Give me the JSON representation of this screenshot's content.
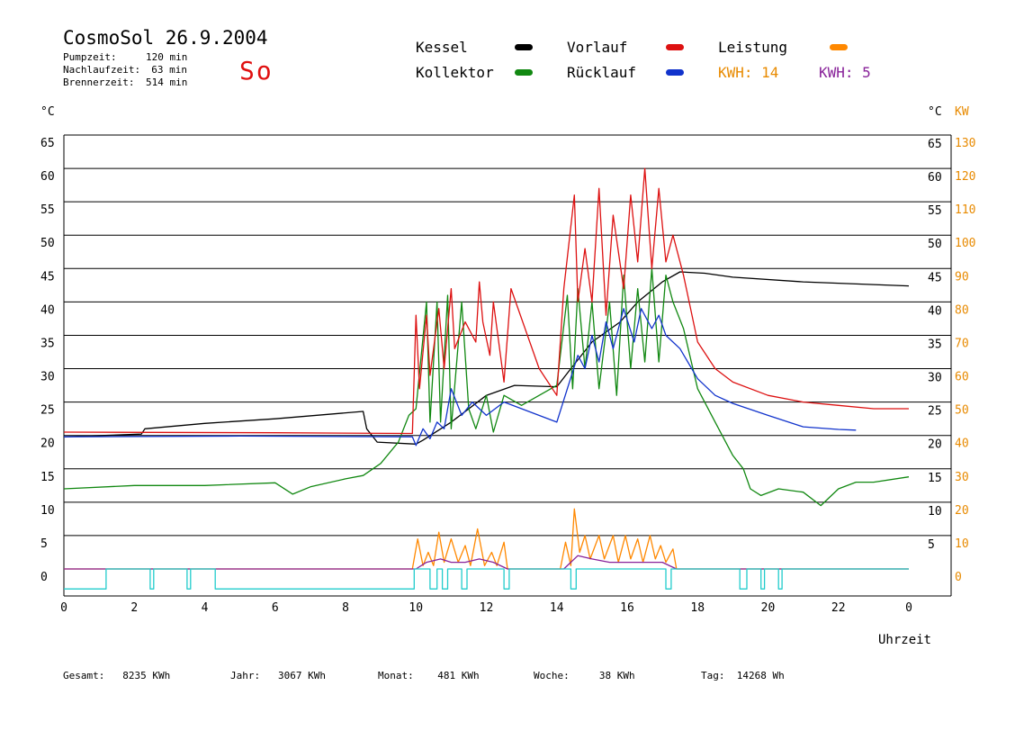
{
  "header": {
    "title": "CosmoSol 26.9.2004",
    "day": "So",
    "stats": [
      {
        "label": "Pumpzeit:",
        "value": "120 min"
      },
      {
        "label": "Nachlaufzeit:",
        "value": "63 min"
      },
      {
        "label": "Brennerzeit:",
        "value": "514 min"
      }
    ]
  },
  "legend": {
    "kessel": {
      "label": "Kessel",
      "color": "#000000"
    },
    "kollektor": {
      "label": "Kollektor",
      "color": "#118811"
    },
    "vorlauf": {
      "label": "Vorlauf",
      "color": "#dd1111"
    },
    "ruecklauf": {
      "label": "Rücklauf",
      "color": "#1133cc"
    },
    "leistung": {
      "label": "Leistung",
      "color": "#ff8800"
    },
    "kwh1": {
      "label": "KWH:",
      "value": "14",
      "color": "#e88a00"
    },
    "kwh2": {
      "label": "KWH:",
      "value": "5",
      "color": "#882299"
    }
  },
  "chart_data": {
    "type": "line",
    "x_label": "Uhrzeit",
    "x_ticks": [
      "0",
      "2",
      "4",
      "6",
      "8",
      "10",
      "12",
      "14",
      "16",
      "18",
      "20",
      "22",
      "0"
    ],
    "xlim": [
      0,
      24
    ],
    "y_left_unit": "°C",
    "y_right_unit": "°C",
    "y_power_unit": "KW",
    "y_left_ticks": [
      "65",
      "60",
      "55",
      "50",
      "45",
      "40",
      "35",
      "30",
      "25",
      "20",
      "15",
      "10",
      "5",
      "0"
    ],
    "y_right_ticks": [
      "65",
      "60",
      "55",
      "50",
      "45",
      "40",
      "35",
      "30",
      "25",
      "20",
      "15",
      "10",
      "5"
    ],
    "y_power_ticks": [
      "130",
      "120",
      "110",
      "100",
      "90",
      "80",
      "70",
      "60",
      "50",
      "40",
      "30",
      "20",
      "10",
      "0"
    ],
    "ylim": [
      0,
      65
    ],
    "power_ylim": [
      0,
      130
    ],
    "grid": true,
    "series": [
      {
        "name": "Kessel",
        "color": "#000000",
        "points": [
          [
            0,
            19.8
          ],
          [
            2.2,
            20.2
          ],
          [
            2.3,
            21
          ],
          [
            4,
            21.8
          ],
          [
            6,
            22.5
          ],
          [
            8.5,
            23.6
          ],
          [
            8.6,
            21
          ],
          [
            8.9,
            19
          ],
          [
            10,
            18.7
          ],
          [
            10.2,
            19.3
          ],
          [
            11,
            22
          ],
          [
            12,
            26
          ],
          [
            12.8,
            27.5
          ],
          [
            14,
            27.3
          ],
          [
            14.4,
            30
          ],
          [
            15,
            34
          ],
          [
            15.8,
            37
          ],
          [
            16.3,
            40
          ],
          [
            17,
            43
          ],
          [
            17.5,
            44.5
          ],
          [
            18.2,
            44.3
          ],
          [
            19,
            43.7
          ],
          [
            21,
            43
          ],
          [
            23,
            42.6
          ],
          [
            24,
            42.4
          ]
        ]
      },
      {
        "name": "Kollektor",
        "color": "#118811",
        "points": [
          [
            0,
            12
          ],
          [
            2,
            12.5
          ],
          [
            4,
            12.5
          ],
          [
            6,
            12.9
          ],
          [
            6.5,
            11.2
          ],
          [
            7,
            12.3
          ],
          [
            8,
            13.5
          ],
          [
            8.5,
            14
          ],
          [
            9,
            15.8
          ],
          [
            9.5,
            19
          ],
          [
            9.8,
            23
          ],
          [
            10,
            24
          ],
          [
            10.3,
            40
          ],
          [
            10.4,
            22
          ],
          [
            10.6,
            40
          ],
          [
            10.7,
            22
          ],
          [
            10.9,
            41
          ],
          [
            11,
            21
          ],
          [
            11.3,
            40
          ],
          [
            11.5,
            24
          ],
          [
            11.7,
            21
          ],
          [
            12,
            26
          ],
          [
            12.2,
            20.5
          ],
          [
            12.5,
            26
          ],
          [
            13,
            24.5
          ],
          [
            13.5,
            26
          ],
          [
            14,
            27.5
          ],
          [
            14.3,
            41
          ],
          [
            14.45,
            27
          ],
          [
            14.6,
            42
          ],
          [
            14.8,
            30
          ],
          [
            15,
            40
          ],
          [
            15.2,
            27
          ],
          [
            15.5,
            40
          ],
          [
            15.7,
            26
          ],
          [
            15.9,
            44
          ],
          [
            16.1,
            30
          ],
          [
            16.3,
            42
          ],
          [
            16.5,
            31
          ],
          [
            16.7,
            45
          ],
          [
            16.9,
            31
          ],
          [
            17.1,
            44
          ],
          [
            17.3,
            40
          ],
          [
            17.6,
            36
          ],
          [
            18,
            27
          ],
          [
            18.5,
            22
          ],
          [
            19,
            17
          ],
          [
            19.3,
            15
          ],
          [
            19.5,
            12
          ],
          [
            19.8,
            11
          ],
          [
            20.3,
            12
          ],
          [
            21,
            11.5
          ],
          [
            21.5,
            9.5
          ],
          [
            22,
            12
          ],
          [
            22.5,
            13
          ],
          [
            23,
            13
          ],
          [
            24,
            13.8
          ]
        ]
      },
      {
        "name": "Vorlauf",
        "color": "#dd1111",
        "points": [
          [
            0,
            20.5
          ],
          [
            6,
            20.4
          ],
          [
            9.9,
            20.3
          ],
          [
            10,
            38
          ],
          [
            10.1,
            27
          ],
          [
            10.3,
            38
          ],
          [
            10.4,
            29
          ],
          [
            10.65,
            39
          ],
          [
            10.8,
            30
          ],
          [
            11,
            42
          ],
          [
            11.1,
            33
          ],
          [
            11.4,
            37
          ],
          [
            11.7,
            34
          ],
          [
            11.8,
            43
          ],
          [
            11.9,
            37
          ],
          [
            12.1,
            32
          ],
          [
            12.2,
            40
          ],
          [
            12.4,
            32
          ],
          [
            12.5,
            28
          ],
          [
            12.7,
            42
          ],
          [
            13.5,
            30
          ],
          [
            14,
            26
          ],
          [
            14.2,
            42
          ],
          [
            14.5,
            56
          ],
          [
            14.6,
            40
          ],
          [
            14.8,
            48
          ],
          [
            15,
            40
          ],
          [
            15.2,
            57
          ],
          [
            15.4,
            38
          ],
          [
            15.6,
            53
          ],
          [
            15.9,
            42
          ],
          [
            16.1,
            56
          ],
          [
            16.3,
            46
          ],
          [
            16.5,
            60
          ],
          [
            16.7,
            45
          ],
          [
            16.9,
            57
          ],
          [
            17.1,
            46
          ],
          [
            17.3,
            50
          ],
          [
            17.6,
            44
          ],
          [
            18,
            34
          ],
          [
            18.5,
            30
          ],
          [
            19,
            28
          ],
          [
            20,
            26
          ],
          [
            21,
            25
          ],
          [
            22,
            24.5
          ],
          [
            23,
            24
          ],
          [
            24,
            24
          ]
        ]
      },
      {
        "name": "Rücklauf",
        "color": "#1133cc",
        "points": [
          [
            0,
            19.8
          ],
          [
            5,
            19.9
          ],
          [
            9.9,
            19.8
          ],
          [
            10,
            18.5
          ],
          [
            10.2,
            21
          ],
          [
            10.4,
            19.5
          ],
          [
            10.6,
            22
          ],
          [
            10.8,
            21
          ],
          [
            11,
            27
          ],
          [
            11.3,
            23
          ],
          [
            11.6,
            25
          ],
          [
            12,
            23
          ],
          [
            12.5,
            25
          ],
          [
            13,
            24
          ],
          [
            14,
            22
          ],
          [
            14.3,
            27
          ],
          [
            14.6,
            32
          ],
          [
            14.8,
            30
          ],
          [
            15,
            35
          ],
          [
            15.2,
            31
          ],
          [
            15.4,
            37
          ],
          [
            15.6,
            33
          ],
          [
            15.9,
            39
          ],
          [
            16.2,
            34
          ],
          [
            16.4,
            39
          ],
          [
            16.7,
            36
          ],
          [
            16.9,
            38
          ],
          [
            17.1,
            35
          ],
          [
            17.5,
            33
          ],
          [
            18,
            28.5
          ],
          [
            18.5,
            26
          ],
          [
            19,
            24.8
          ],
          [
            20,
            23
          ],
          [
            21,
            21.3
          ],
          [
            22,
            20.9
          ],
          [
            22.5,
            20.8
          ]
        ]
      },
      {
        "name": "Leistung",
        "color": "#ff8800",
        "points": [
          [
            0,
            0
          ],
          [
            9.9,
            0
          ],
          [
            10.05,
            9
          ],
          [
            10.2,
            1
          ],
          [
            10.35,
            5
          ],
          [
            10.5,
            1
          ],
          [
            10.65,
            11
          ],
          [
            10.8,
            2
          ],
          [
            11,
            9
          ],
          [
            11.2,
            2
          ],
          [
            11.4,
            7
          ],
          [
            11.55,
            1
          ],
          [
            11.75,
            12
          ],
          [
            11.95,
            1
          ],
          [
            12.15,
            5
          ],
          [
            12.3,
            1
          ],
          [
            12.5,
            8
          ],
          [
            12.6,
            0
          ],
          [
            14.1,
            0
          ],
          [
            14.25,
            8
          ],
          [
            14.4,
            1
          ],
          [
            14.5,
            18
          ],
          [
            14.65,
            5
          ],
          [
            14.8,
            10
          ],
          [
            14.95,
            3
          ],
          [
            15.2,
            10
          ],
          [
            15.35,
            3
          ],
          [
            15.6,
            10
          ],
          [
            15.75,
            2
          ],
          [
            15.95,
            10
          ],
          [
            16.1,
            3
          ],
          [
            16.3,
            9
          ],
          [
            16.45,
            2
          ],
          [
            16.65,
            10
          ],
          [
            16.8,
            3
          ],
          [
            16.95,
            7
          ],
          [
            17.1,
            2
          ],
          [
            17.3,
            6
          ],
          [
            17.4,
            0
          ],
          [
            24,
            0
          ]
        ]
      },
      {
        "name": "Leistung-2",
        "color": "#882299",
        "points": [
          [
            0,
            0
          ],
          [
            10,
            0
          ],
          [
            10.3,
            2
          ],
          [
            10.7,
            3
          ],
          [
            11,
            2
          ],
          [
            11.4,
            2
          ],
          [
            11.8,
            3
          ],
          [
            12.2,
            2
          ],
          [
            12.6,
            0
          ],
          [
            14.2,
            0
          ],
          [
            14.6,
            4
          ],
          [
            15,
            3
          ],
          [
            15.5,
            2
          ],
          [
            16,
            2
          ],
          [
            16.5,
            2
          ],
          [
            17,
            2
          ],
          [
            17.4,
            0
          ],
          [
            24,
            0
          ]
        ]
      },
      {
        "name": "Pumpe",
        "color": "#22cccc",
        "points": [
          [
            0,
            -3
          ],
          [
            1.2,
            -3
          ],
          [
            1.2,
            0
          ],
          [
            2.45,
            0
          ],
          [
            2.45,
            -3
          ],
          [
            2.55,
            -3
          ],
          [
            2.55,
            0
          ],
          [
            3.5,
            0
          ],
          [
            3.5,
            -3
          ],
          [
            3.6,
            -3
          ],
          [
            3.6,
            0
          ],
          [
            4.3,
            0
          ],
          [
            4.3,
            -3
          ],
          [
            9.95,
            -3
          ],
          [
            9.95,
            0
          ],
          [
            10.4,
            0
          ],
          [
            10.4,
            -3
          ],
          [
            10.6,
            -3
          ],
          [
            10.6,
            0
          ],
          [
            10.75,
            0
          ],
          [
            10.75,
            -3
          ],
          [
            10.9,
            -3
          ],
          [
            10.9,
            0
          ],
          [
            11.3,
            0
          ],
          [
            11.3,
            -3
          ],
          [
            11.45,
            -3
          ],
          [
            11.45,
            0
          ],
          [
            12.5,
            0
          ],
          [
            12.5,
            -3
          ],
          [
            12.65,
            -3
          ],
          [
            12.65,
            0
          ],
          [
            14.4,
            0
          ],
          [
            14.4,
            -3
          ],
          [
            14.55,
            -3
          ],
          [
            14.55,
            0
          ],
          [
            17.1,
            0
          ],
          [
            17.1,
            -3
          ],
          [
            17.25,
            -3
          ],
          [
            17.25,
            0
          ],
          [
            19.2,
            0
          ],
          [
            19.2,
            -3
          ],
          [
            19.4,
            -3
          ],
          [
            19.4,
            0
          ],
          [
            19.8,
            0
          ],
          [
            19.8,
            -3
          ],
          [
            19.9,
            -3
          ],
          [
            19.9,
            0
          ],
          [
            20.3,
            0
          ],
          [
            20.3,
            -3
          ],
          [
            20.4,
            -3
          ],
          [
            20.4,
            0
          ],
          [
            24,
            0
          ]
        ]
      }
    ]
  },
  "footer": [
    {
      "label": "Gesamt:",
      "value": "8235 KWh"
    },
    {
      "label": "Jahr:",
      "value": "3067 KWh"
    },
    {
      "label": "Monat:",
      "value": "481 KWh"
    },
    {
      "label": "Woche:",
      "value": "38 KWh"
    },
    {
      "label": "Tag:",
      "value": "14268 Wh"
    }
  ]
}
